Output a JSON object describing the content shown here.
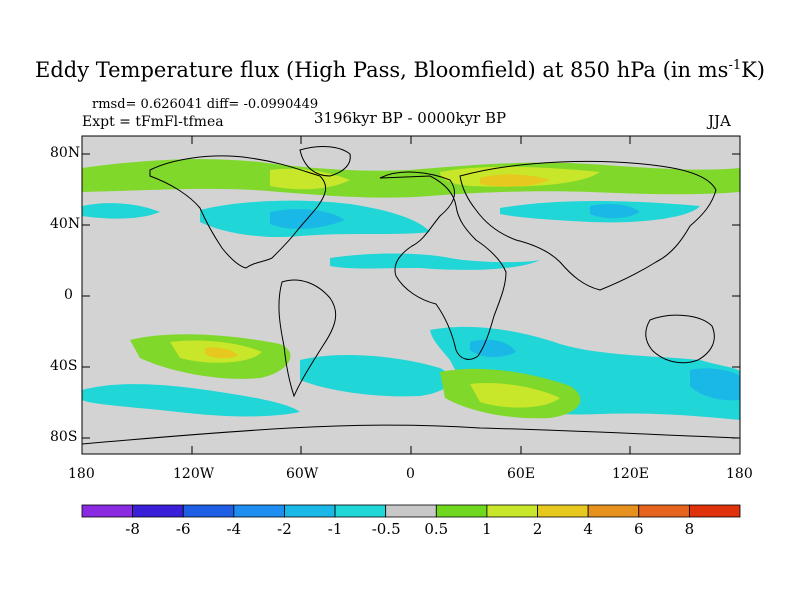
{
  "title": "Eddy Temperature flux (High Pass, Bloomfield) at 850 hPa (in ms",
  "title_sup": "-1",
  "title_end": "K)",
  "stats": "rmsd= 0.626041 diff= -0.0990449",
  "expt": "Expt = tFmFl-tfmea",
  "period": "3196kyr BP - 0000kyr BP",
  "season": "JJA",
  "lat_labels": [
    "80N",
    "40N",
    "0",
    "40S",
    "80S"
  ],
  "lon_labels": [
    "180",
    "120W",
    "60W",
    "0",
    "60E",
    "120E",
    "180"
  ],
  "colorbar": {
    "labels": [
      "-8",
      "-6",
      "-4",
      "-2",
      "-1",
      "-0.5",
      "0.5",
      "1",
      "2",
      "4",
      "6",
      "8"
    ],
    "colors": [
      "#8a2be2",
      "#3a1fd8",
      "#1f5fe6",
      "#1e8ef0",
      "#1ab8e6",
      "#20d6d6",
      "#c8c8c8",
      "#6fd81e",
      "#c8e62a",
      "#e6c81e",
      "#e6901e",
      "#e6641e",
      "#e0320a"
    ]
  },
  "map": {
    "background": "#d3d3d3",
    "extent": {
      "lon": [
        -180,
        180
      ],
      "lat": [
        -90,
        90
      ]
    }
  }
}
